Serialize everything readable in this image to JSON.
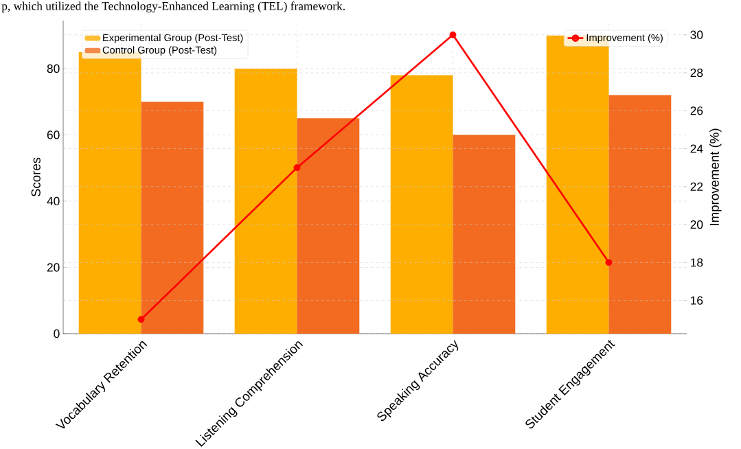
{
  "chart_data": {
    "type": "bar",
    "annotations": [
      "p, which utilized the Technology-Enhanced Learning (TEL) framework."
    ],
    "categories": [
      "Vocabulary Retention",
      "Listening Comprehension",
      "Speaking Accuracy",
      "Student Engagement"
    ],
    "ylabel": "Scores",
    "y2label": "Improvement (%)",
    "series": [
      {
        "name": "Experimental Group (Post-Test)",
        "color": "#fdae00",
        "values": [
          85,
          80,
          78,
          90
        ]
      },
      {
        "name": "Control Group (Post-Test)",
        "color": "#f26b21",
        "values": [
          70,
          65,
          60,
          72
        ]
      },
      {
        "name": "Improvement (%)",
        "type": "line",
        "axis": "y2",
        "color": "#ff0000",
        "values": [
          15,
          23,
          30,
          18
        ]
      }
    ],
    "ylim": [
      0,
      94.5
    ],
    "yticks": [
      0,
      20,
      40,
      60,
      80
    ],
    "y2lim": [
      14.25,
      30.75
    ],
    "y2ticks": [
      16,
      18,
      20,
      22,
      24,
      26,
      28,
      30
    ],
    "grid": true,
    "legend": "top",
    "marker": "circle",
    "line_style": "solid"
  }
}
